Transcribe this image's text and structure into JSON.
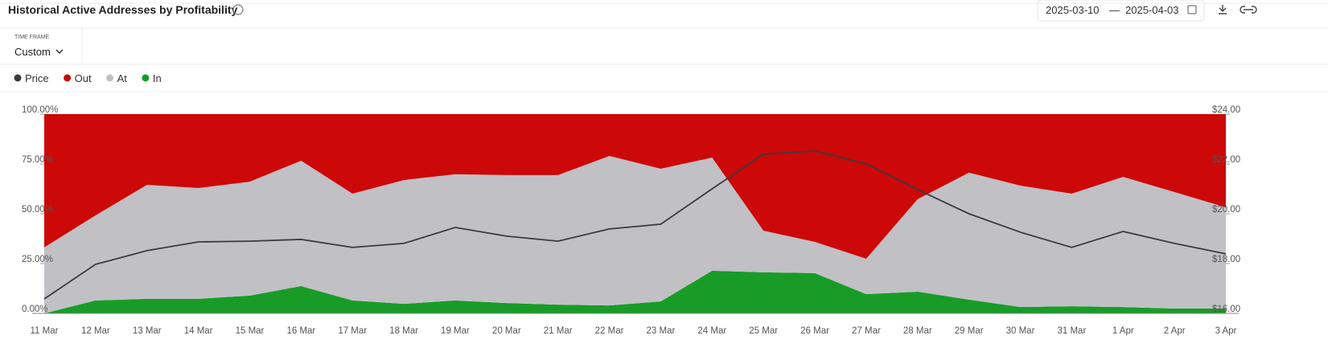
{
  "header": {
    "title": "Historical Active Addresses by Profitability",
    "date_start": "2025-03-10",
    "date_separator": "—",
    "date_end": "2025-04-03",
    "time_frame_label": "TIME FRAME",
    "time_frame_value": "Custom"
  },
  "chart_data": {
    "type": "stacked_area_line",
    "categories": [
      "11 Mar",
      "12 Mar",
      "13 Mar",
      "14 Mar",
      "15 Mar",
      "16 Mar",
      "17 Mar",
      "18 Mar",
      "19 Mar",
      "20 Mar",
      "21 Mar",
      "22 Mar",
      "23 Mar",
      "24 Mar",
      "25 Mar",
      "26 Mar",
      "27 Mar",
      "28 Mar",
      "29 Mar",
      "30 Mar",
      "31 Mar",
      "1 Apr",
      "2 Apr",
      "3 Apr"
    ],
    "series": [
      {
        "name": "Price",
        "color": "#3b3b3f",
        "axis": "y2",
        "values": [
          16.58,
          17.97,
          18.52,
          18.87,
          18.9,
          18.97,
          18.65,
          18.81,
          19.45,
          19.1,
          18.9,
          19.39,
          19.58,
          21.0,
          22.39,
          22.52,
          22.0,
          20.97,
          20.0,
          19.26,
          18.65,
          19.29,
          18.81,
          18.39
        ]
      },
      {
        "name": "Out",
        "color": "#cc0808",
        "values": [
          66.9,
          50.8,
          35.5,
          37.1,
          33.9,
          23.4,
          39.9,
          33.1,
          30.2,
          30.6,
          30.6,
          21.0,
          27.4,
          21.8,
          58.5,
          64.1,
          72.6,
          42.7,
          29.4,
          35.9,
          39.9,
          31.5,
          39.1,
          46.8
        ]
      },
      {
        "name": "At",
        "color": "#c1c0c5",
        "values": [
          33.1,
          42.7,
          57.2,
          55.6,
          57.2,
          62.9,
          53.6,
          62.1,
          63.3,
          64.2,
          65.0,
          75.0,
          66.6,
          56.8,
          20.9,
          15.7,
          17.7,
          46.4,
          63.7,
          60.9,
          56.5,
          65.3,
          58.5,
          50.8
        ]
      },
      {
        "name": "In",
        "color": "#189c27",
        "values": [
          0,
          6.5,
          7.3,
          7.3,
          8.9,
          13.7,
          6.5,
          4.8,
          6.5,
          5.2,
          4.4,
          4.0,
          6.0,
          21.4,
          20.6,
          20.2,
          9.7,
          10.9,
          6.9,
          3.2,
          3.6,
          3.2,
          2.4,
          2.4
        ]
      }
    ],
    "ylim": [
      0,
      100
    ],
    "yticks": [
      {
        "value": 0,
        "label": "0.00%"
      },
      {
        "value": 25,
        "label": "25.00%"
      },
      {
        "value": 50,
        "label": "50.00%"
      },
      {
        "value": 75,
        "label": "75.00%"
      },
      {
        "value": 100,
        "label": "100.00%"
      }
    ],
    "y2lim": [
      16,
      24
    ],
    "y2ticks": [
      {
        "value": 16,
        "label": "$16.00"
      },
      {
        "value": 18,
        "label": "$18.00"
      },
      {
        "value": 20,
        "label": "$20.00"
      },
      {
        "value": 22,
        "label": "$22.00"
      },
      {
        "value": 24,
        "label": "$24.00"
      }
    ],
    "legend": "top-left"
  }
}
